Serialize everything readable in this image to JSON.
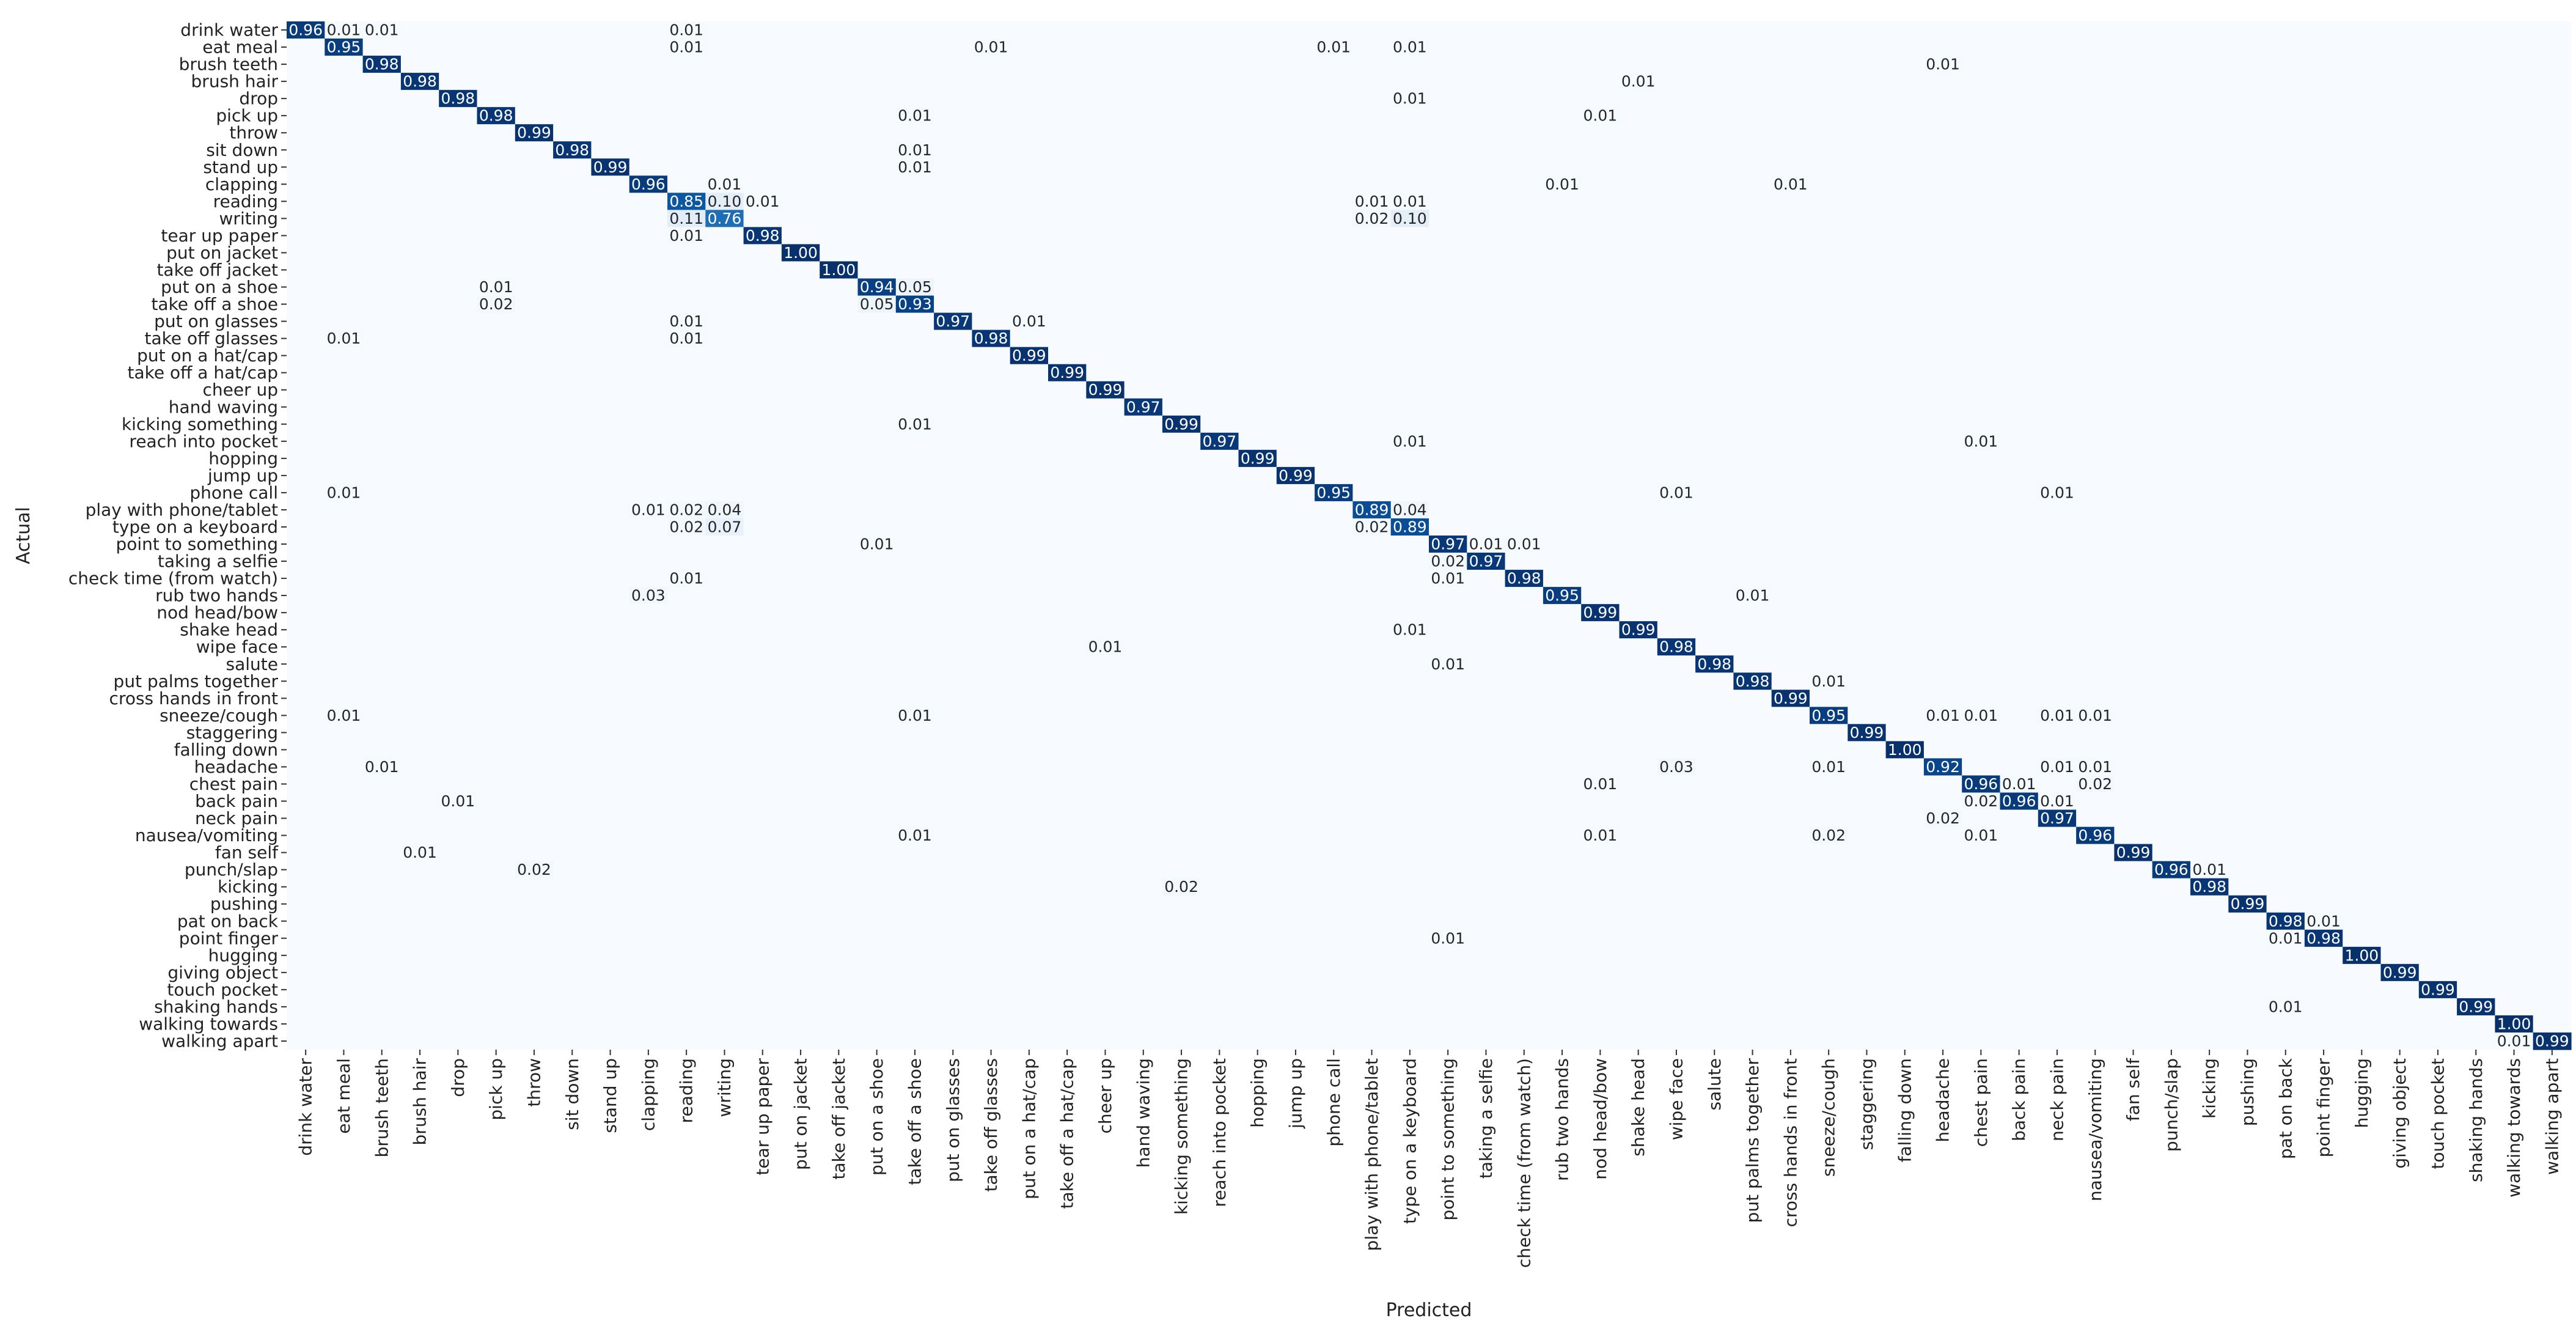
{
  "chart_data": {
    "type": "heatmap",
    "title": "",
    "xlabel": "Predicted",
    "ylabel": "Actual",
    "colorscale": "Blues",
    "vmin": 0,
    "vmax": 1,
    "value_format": "2 decimals; zero cells not annotated",
    "labels": [
      "drink water",
      "eat meal",
      "brush teeth",
      "brush hair",
      "drop",
      "pick up",
      "throw",
      "sit down",
      "stand up",
      "clapping",
      "reading",
      "writing",
      "tear up paper",
      "put on jacket",
      "take off jacket",
      "put on a shoe",
      "take off a shoe",
      "put on glasses",
      "take off glasses",
      "put on a hat/cap",
      "take off a hat/cap",
      "cheer up",
      "hand waving",
      "kicking something",
      "reach into pocket",
      "hopping",
      "jump up",
      "phone call",
      "play with phone/tablet",
      "type on a keyboard",
      "point to something",
      "taking a selfie",
      "check time (from watch)",
      "rub two hands",
      "nod head/bow",
      "shake head",
      "wipe face",
      "salute",
      "put palms together",
      "cross hands in front",
      "sneeze/cough",
      "staggering",
      "falling down",
      "headache",
      "chest pain",
      "back pain",
      "neck pain",
      "nausea/vomiting",
      "fan self",
      "punch/slap",
      "kicking",
      "pushing",
      "pat on back",
      "point finger",
      "hugging",
      "giving object",
      "touch pocket",
      "shaking hands",
      "walking towards",
      "walking apart"
    ],
    "diagonal": [
      0.96,
      0.95,
      0.98,
      0.98,
      0.98,
      0.98,
      0.99,
      0.98,
      0.99,
      0.96,
      0.85,
      0.76,
      0.98,
      1.0,
      1.0,
      0.94,
      0.93,
      0.97,
      0.98,
      0.99,
      0.99,
      0.99,
      0.97,
      0.99,
      0.97,
      0.99,
      0.99,
      0.95,
      0.89,
      0.89,
      0.97,
      0.97,
      0.98,
      0.95,
      0.99,
      0.99,
      0.98,
      0.98,
      0.98,
      0.99,
      0.95,
      0.99,
      1.0,
      0.92,
      0.96,
      0.96,
      0.97,
      0.96,
      0.99,
      0.96,
      0.98,
      0.99,
      0.98,
      0.98,
      1.0,
      0.99,
      0.99,
      0.99,
      1.0,
      0.99
    ],
    "off_diagonal": [
      [
        0,
        1,
        0.01
      ],
      [
        0,
        2,
        0.01
      ],
      [
        0,
        10,
        0.01
      ],
      [
        1,
        10,
        0.01
      ],
      [
        1,
        18,
        0.01
      ],
      [
        1,
        27,
        0.01
      ],
      [
        1,
        29,
        0.01
      ],
      [
        2,
        43,
        0.01
      ],
      [
        3,
        35,
        0.01
      ],
      [
        4,
        29,
        0.01
      ],
      [
        5,
        16,
        0.01
      ],
      [
        5,
        34,
        0.01
      ],
      [
        7,
        16,
        0.01
      ],
      [
        8,
        16,
        0.01
      ],
      [
        9,
        11,
        0.01
      ],
      [
        9,
        33,
        0.01
      ],
      [
        9,
        39,
        0.01
      ],
      [
        10,
        11,
        0.1
      ],
      [
        10,
        12,
        0.01
      ],
      [
        10,
        28,
        0.01
      ],
      [
        10,
        29,
        0.01
      ],
      [
        11,
        10,
        0.11
      ],
      [
        11,
        28,
        0.02
      ],
      [
        11,
        29,
        0.1
      ],
      [
        12,
        10,
        0.01
      ],
      [
        15,
        5,
        0.01
      ],
      [
        15,
        16,
        0.05
      ],
      [
        16,
        5,
        0.02
      ],
      [
        16,
        15,
        0.05
      ],
      [
        17,
        10,
        0.01
      ],
      [
        17,
        19,
        0.01
      ],
      [
        18,
        1,
        0.01
      ],
      [
        18,
        10,
        0.01
      ],
      [
        23,
        16,
        0.01
      ],
      [
        24,
        29,
        0.01
      ],
      [
        24,
        44,
        0.01
      ],
      [
        27,
        1,
        0.01
      ],
      [
        27,
        36,
        0.01
      ],
      [
        27,
        46,
        0.01
      ],
      [
        28,
        9,
        0.01
      ],
      [
        28,
        10,
        0.02
      ],
      [
        28,
        11,
        0.04
      ],
      [
        28,
        29,
        0.04
      ],
      [
        29,
        10,
        0.02
      ],
      [
        29,
        11,
        0.07
      ],
      [
        29,
        28,
        0.02
      ],
      [
        30,
        15,
        0.01
      ],
      [
        30,
        31,
        0.01
      ],
      [
        30,
        32,
        0.01
      ],
      [
        31,
        30,
        0.02
      ],
      [
        32,
        10,
        0.01
      ],
      [
        32,
        30,
        0.01
      ],
      [
        33,
        9,
        0.03
      ],
      [
        33,
        38,
        0.01
      ],
      [
        35,
        29,
        0.01
      ],
      [
        36,
        21,
        0.01
      ],
      [
        37,
        30,
        0.01
      ],
      [
        38,
        40,
        0.01
      ],
      [
        40,
        1,
        0.01
      ],
      [
        40,
        16,
        0.01
      ],
      [
        40,
        43,
        0.01
      ],
      [
        40,
        44,
        0.01
      ],
      [
        40,
        46,
        0.01
      ],
      [
        40,
        47,
        0.01
      ],
      [
        43,
        2,
        0.01
      ],
      [
        43,
        36,
        0.03
      ],
      [
        43,
        40,
        0.01
      ],
      [
        43,
        46,
        0.01
      ],
      [
        43,
        47,
        0.01
      ],
      [
        44,
        34,
        0.01
      ],
      [
        44,
        45,
        0.01
      ],
      [
        44,
        47,
        0.02
      ],
      [
        45,
        4,
        0.01
      ],
      [
        45,
        44,
        0.02
      ],
      [
        45,
        46,
        0.01
      ],
      [
        46,
        43,
        0.02
      ],
      [
        47,
        16,
        0.01
      ],
      [
        47,
        34,
        0.01
      ],
      [
        47,
        40,
        0.02
      ],
      [
        47,
        44,
        0.01
      ],
      [
        48,
        3,
        0.01
      ],
      [
        49,
        6,
        0.02
      ],
      [
        49,
        50,
        0.01
      ],
      [
        50,
        23,
        0.02
      ],
      [
        52,
        53,
        0.01
      ],
      [
        53,
        30,
        0.01
      ],
      [
        53,
        52,
        0.01
      ],
      [
        57,
        52,
        0.01
      ],
      [
        59,
        58,
        0.01
      ]
    ]
  }
}
